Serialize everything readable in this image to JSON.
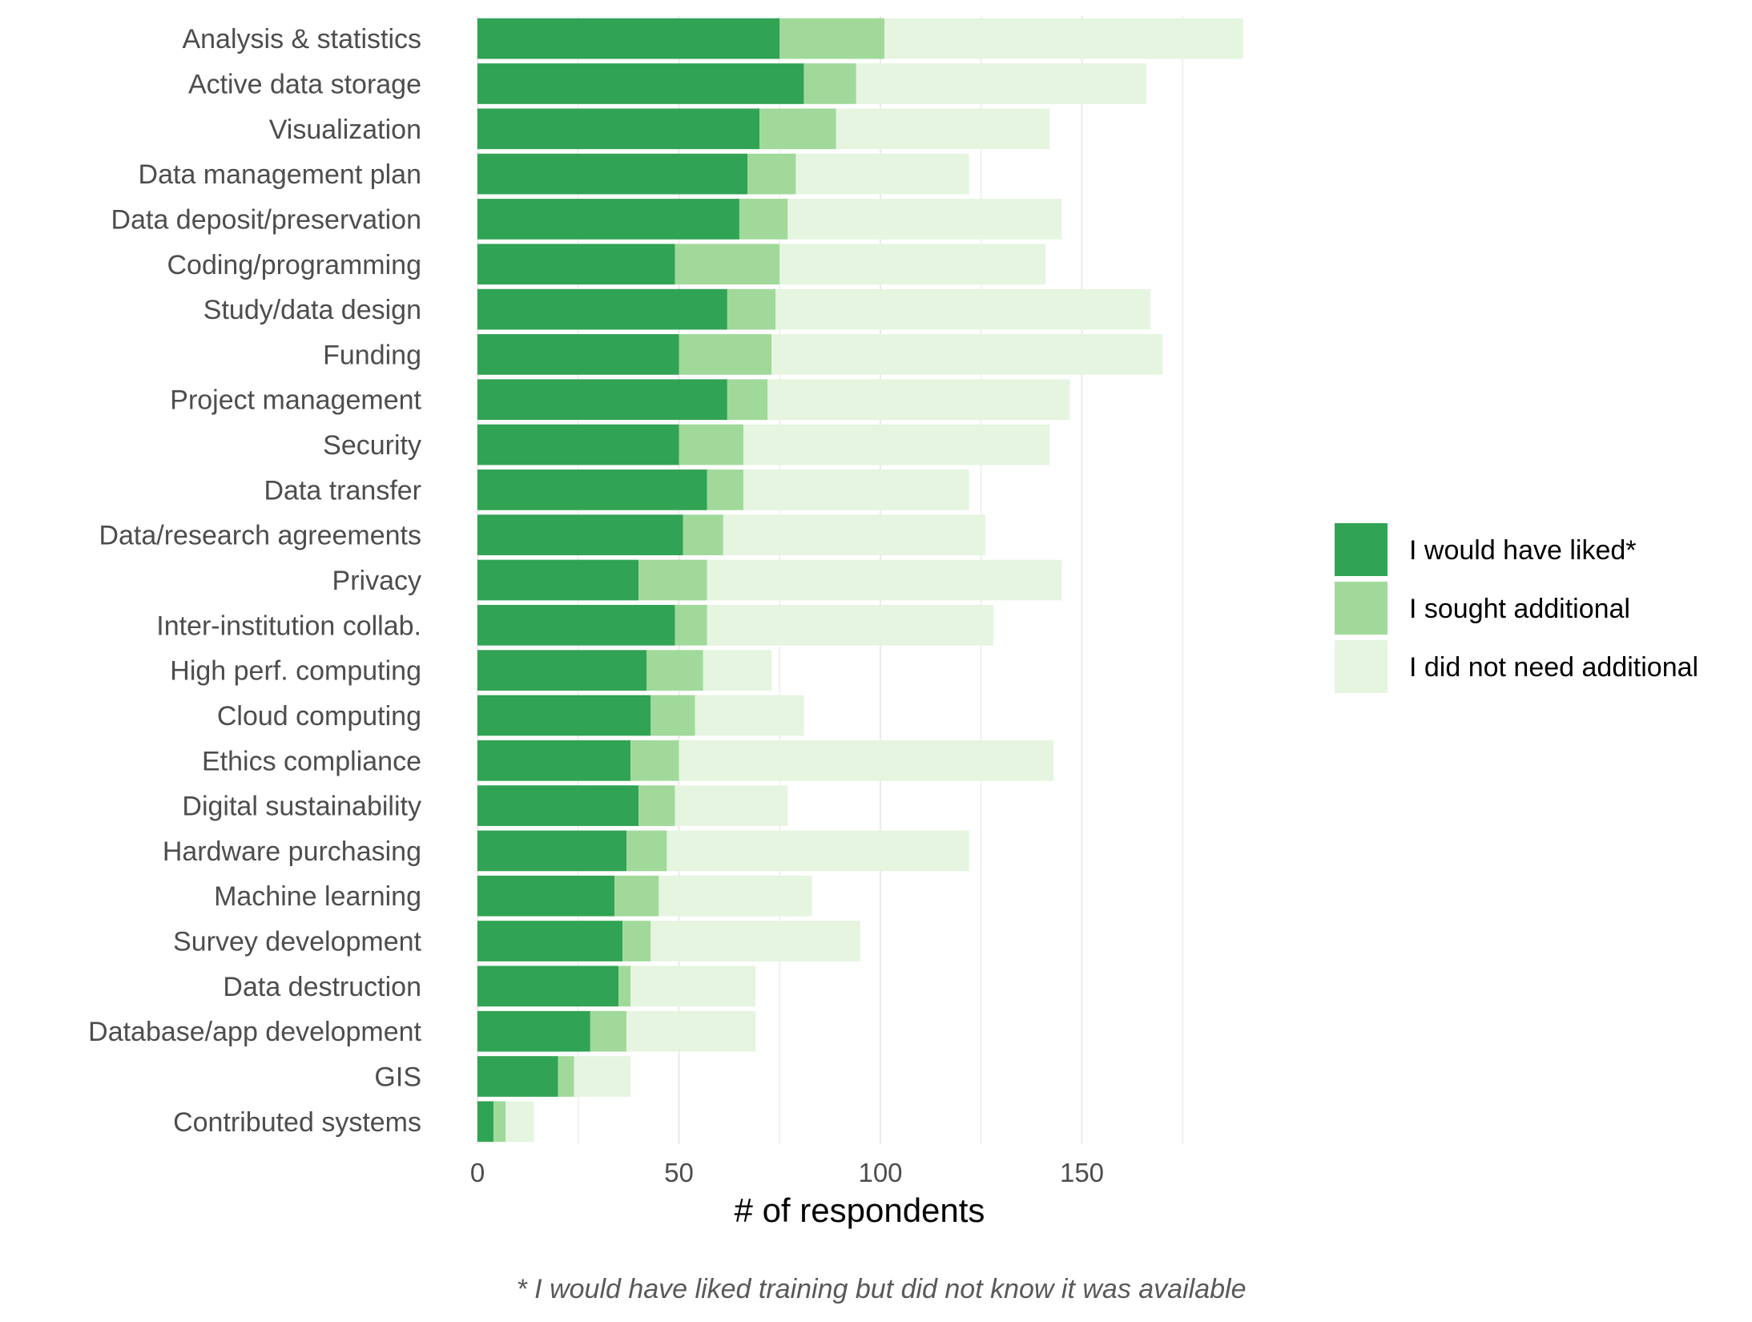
{
  "chart_data": {
    "type": "bar",
    "orientation": "horizontal",
    "stacked": true,
    "xlabel": "# of respondents",
    "caption": "* I would have liked training but did not know it was available",
    "xlim": [
      0,
      195
    ],
    "xticks": [
      0,
      50,
      100,
      150
    ],
    "grid": true,
    "legend_position": "right",
    "categories": [
      "Analysis & statistics",
      "Active data storage",
      "Visualization",
      "Data management plan",
      "Data deposit/preservation",
      "Coding/programming",
      "Study/data design",
      "Funding",
      "Project management",
      "Security",
      "Data transfer",
      "Data/research agreements",
      "Privacy",
      "Inter-institution collab.",
      "High perf. computing",
      "Cloud computing",
      "Ethics compliance",
      "Digital sustainability",
      "Hardware purchasing",
      "Machine learning",
      "Survey development",
      "Data destruction",
      "Database/app development",
      "GIS",
      "Contributed systems"
    ],
    "series": [
      {
        "name": "I would have liked*",
        "color": "#31a354",
        "values": [
          75,
          81,
          70,
          67,
          65,
          49,
          62,
          50,
          62,
          50,
          57,
          51,
          40,
          49,
          42,
          43,
          38,
          40,
          37,
          34,
          36,
          35,
          28,
          20,
          4
        ]
      },
      {
        "name": "I sought additional",
        "color": "#a1d99b",
        "values": [
          26,
          13,
          19,
          12,
          12,
          26,
          12,
          23,
          10,
          16,
          9,
          10,
          17,
          8,
          14,
          11,
          12,
          9,
          10,
          11,
          7,
          3,
          9,
          4,
          3
        ]
      },
      {
        "name": "I did not need additional",
        "color": "#e5f5e0",
        "values": [
          89,
          72,
          53,
          43,
          68,
          66,
          93,
          97,
          75,
          76,
          56,
          65,
          88,
          71,
          17,
          27,
          93,
          28,
          75,
          38,
          52,
          31,
          32,
          14,
          7
        ]
      }
    ]
  }
}
